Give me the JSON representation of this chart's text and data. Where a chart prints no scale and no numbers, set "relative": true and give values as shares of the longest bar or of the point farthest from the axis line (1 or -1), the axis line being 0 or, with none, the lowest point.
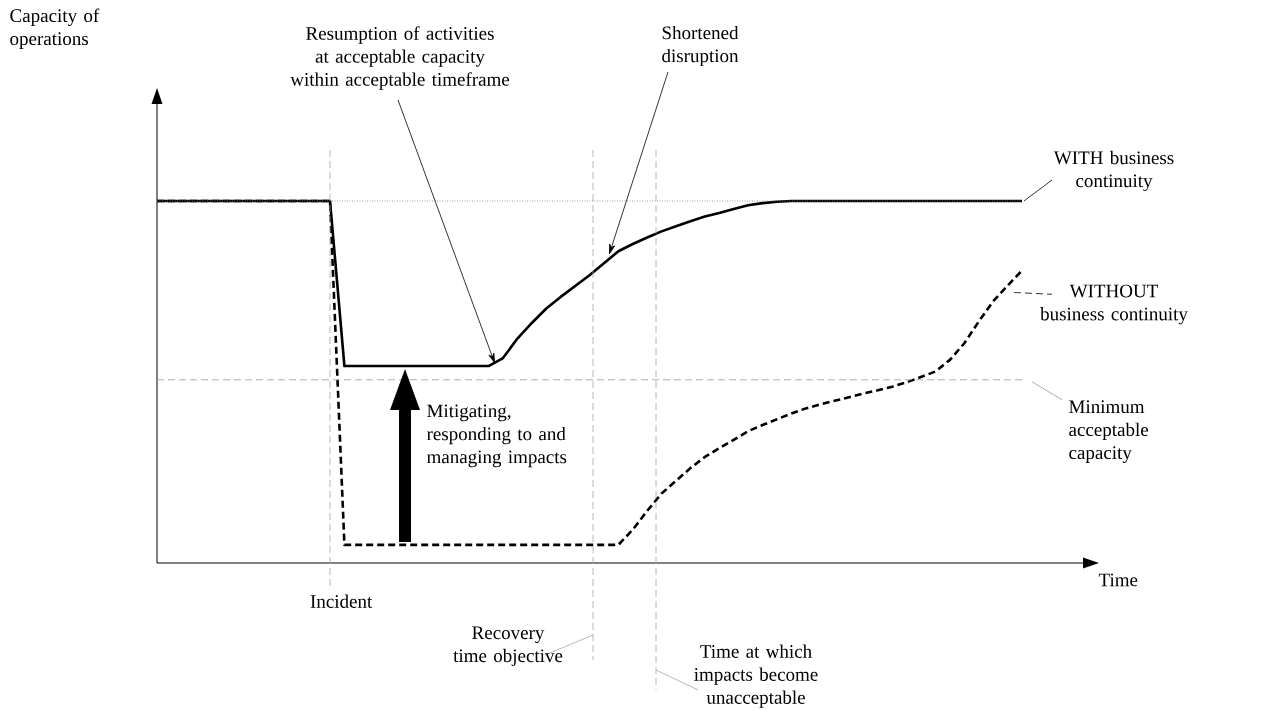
{
  "chart_data": {
    "type": "line",
    "relative": true,
    "xlabel": "Time",
    "marker": "none",
    "categories": [
      null,
      null,
      null,
      null,
      null,
      null,
      null,
      null,
      null,
      null,
      null,
      null,
      null,
      null,
      null,
      null,
      null,
      null,
      null,
      null,
      null,
      null,
      null,
      null,
      null,
      null,
      null,
      null,
      null,
      null,
      null,
      null,
      null,
      null,
      null,
      null,
      null,
      null,
      null,
      null,
      null,
      null,
      null,
      null,
      null,
      null,
      null,
      null,
      null,
      null,
      null,
      null,
      null,
      null,
      null,
      null,
      null,
      null,
      null,
      null,
      null
    ],
    "series": [
      {
        "name": "WITH business continuity",
        "color": "#000000",
        "line_style": "solid",
        "values": [
          1,
          1,
          1,
          1,
          1,
          1,
          1,
          1,
          1,
          1,
          1,
          1,
          1,
          0.544,
          0.544,
          0.544,
          0.544,
          0.544,
          0.544,
          0.544,
          0.544,
          0.544,
          0.544,
          0.544,
          0.566,
          0.62,
          0.663,
          0.703,
          0.735,
          0.765,
          0.795,
          0.828,
          0.861,
          0.881,
          0.899,
          0.916,
          0.93,
          0.944,
          0.957,
          0.967,
          0.978,
          0.988,
          0.994,
          0.998,
          1,
          1,
          1,
          1,
          1,
          1,
          1,
          1,
          1,
          1,
          1,
          1,
          1,
          1,
          1,
          1,
          1
        ]
      },
      {
        "name": "WITHOUT business continuity",
        "color": "#000000",
        "line_style": "dashed",
        "values": [
          1,
          1,
          1,
          1,
          1,
          1,
          1,
          1,
          1,
          1,
          1,
          1,
          1,
          0.05,
          0.05,
          0.05,
          0.05,
          0.05,
          0.05,
          0.05,
          0.05,
          0.05,
          0.05,
          0.05,
          0.05,
          0.05,
          0.05,
          0.05,
          0.05,
          0.05,
          0.05,
          0.05,
          0.05,
          0.092,
          0.144,
          0.192,
          0.227,
          0.262,
          0.293,
          0.317,
          0.34,
          0.364,
          0.381,
          0.397,
          0.413,
          0.427,
          0.438,
          0.448,
          0.458,
          0.468,
          0.477,
          0.487,
          0.499,
          0.514,
          0.529,
          0.561,
          0.607,
          0.667,
          0.723,
          0.766,
          0.808
        ]
      }
    ],
    "ref_lines": [
      {
        "axis": "y",
        "value": 1,
        "color": "#808080",
        "line_style": "dotted"
      },
      {
        "axis": "y",
        "value": 0.506,
        "label": "Minimum acceptable capacity",
        "color": "#999999",
        "line_style": "dashed"
      }
    ],
    "annotations": [
      "Capacity of operations",
      "Resumption of activities at acceptable capacity within acceptable timeframe",
      "Shortened disruption",
      "Mitigating, responding to and managing impacts",
      "Incident",
      "Recovery time objective",
      "Time at which impacts become unacceptable"
    ]
  }
}
